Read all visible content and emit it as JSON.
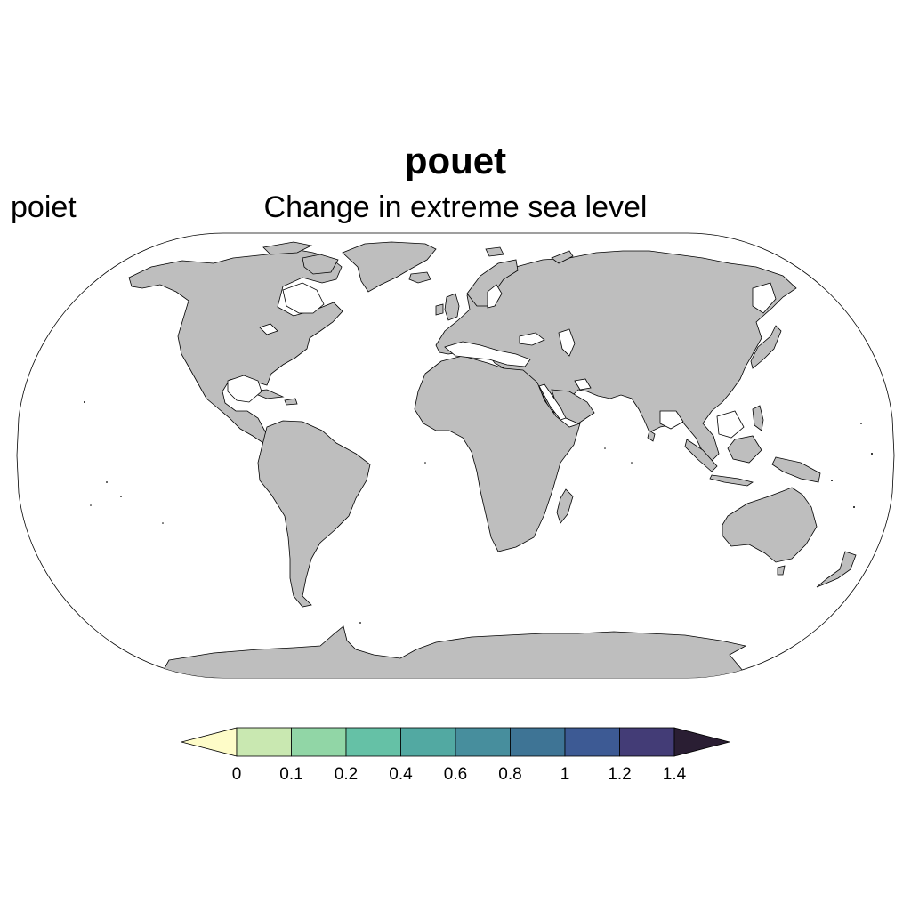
{
  "title": "pouet",
  "left_label": "poiet",
  "subtitle": "Change in extreme sea level",
  "map": {
    "projection": "Robinson",
    "land_color": "#bebebe",
    "ocean_color": "#ffffff",
    "coastline_color": "#000000"
  },
  "colorbar": {
    "ticks": [
      "0",
      "0.1",
      "0.2",
      "0.4",
      "0.6",
      "0.8",
      "1",
      "1.2",
      "1.4"
    ],
    "colors": [
      "#fefcc8",
      "#c9e8b1",
      "#91d6a6",
      "#65c1a6",
      "#52a9a2",
      "#478e9d",
      "#3e7495",
      "#3d5a94",
      "#433c76",
      "#2a1e33"
    ],
    "extend": "both"
  }
}
